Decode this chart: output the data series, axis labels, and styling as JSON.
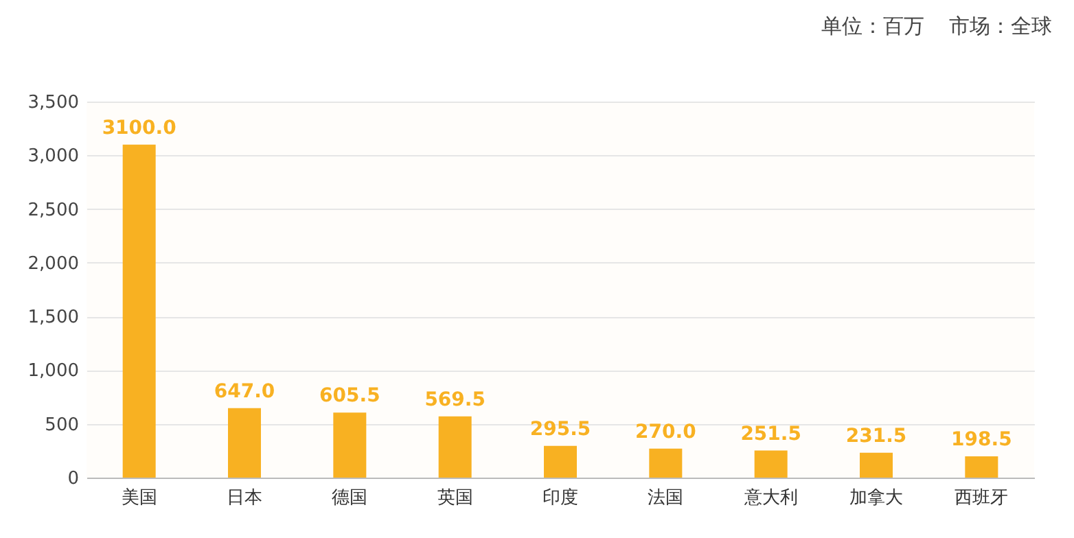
{
  "chart_data": {
    "type": "bar",
    "annotations": [
      "单位：百万",
      "市场：全球"
    ],
    "categories": [
      "美国",
      "日本",
      "德国",
      "英国",
      "印度",
      "法国",
      "意大利",
      "加拿大",
      "西班牙"
    ],
    "values": [
      3100.0,
      647.0,
      605.5,
      569.5,
      295.5,
      270.0,
      251.5,
      231.5,
      198.5
    ],
    "value_labels": [
      "3100.0",
      "647.0",
      "605.5",
      "569.5",
      "295.5",
      "270.0",
      "251.5",
      "231.5",
      "198.5"
    ],
    "color": "#f8b122",
    "ylim": [
      0,
      3500
    ],
    "yticks": [
      0,
      500,
      {
        "value": 1000,
        "label": "1,000"
      },
      {
        "value": 1500,
        "label": "1,500"
      },
      {
        "value": 2000,
        "label": "2,000"
      },
      {
        "value": 2500,
        "label": "2,500"
      },
      {
        "value": 3000,
        "label": "3,000"
      },
      {
        "value": 3500,
        "label": "3,500"
      }
    ],
    "grid": "y"
  }
}
